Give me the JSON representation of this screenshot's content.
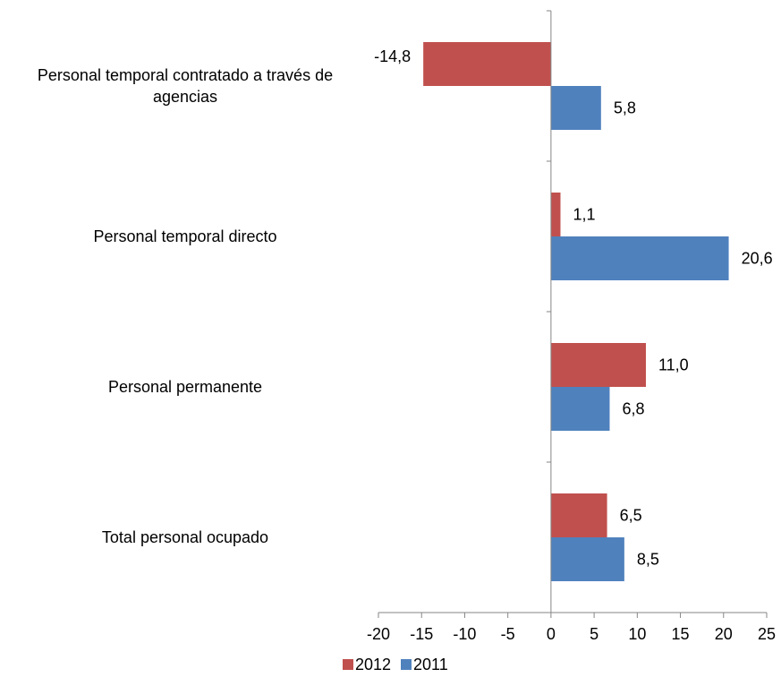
{
  "chart_data": {
    "type": "bar",
    "orientation": "horizontal",
    "categories": [
      [
        "Personal temporal contratado a través de",
        "agencias"
      ],
      [
        "Personal temporal directo"
      ],
      [
        "Personal permanente"
      ],
      [
        "Total personal ocupado"
      ]
    ],
    "series": [
      {
        "name": "2012",
        "color": "#C0504D",
        "values": [
          -14.8,
          1.1,
          11.0,
          6.5
        ],
        "labels": [
          "-14,8",
          "1,1",
          "11,0",
          "6,5"
        ]
      },
      {
        "name": "2011",
        "color": "#4F81BD",
        "values": [
          5.8,
          20.6,
          6.8,
          8.5
        ],
        "labels": [
          "5,8",
          "20,6",
          "6,8",
          "8,5"
        ]
      }
    ],
    "xlim": [
      -20,
      25
    ],
    "xticks": [
      -20,
      -15,
      -10,
      -5,
      0,
      5,
      10,
      15,
      20,
      25
    ],
    "grid": false,
    "legend_position": "bottom"
  }
}
